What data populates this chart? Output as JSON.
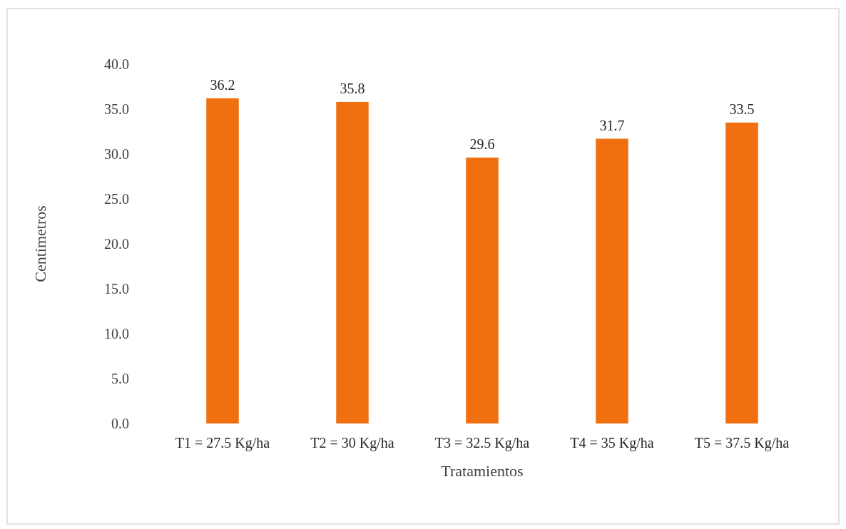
{
  "chart_data": {
    "type": "bar",
    "xlabel": "Tratamientos",
    "ylabel": "Centímetros",
    "categories": [
      "T1 = 27.5 Kg/ha",
      "T2 = 30 Kg/ha",
      "T3 = 32.5 Kg/ha",
      "T4 = 35 Kg/ha",
      "T5 = 37.5 Kg/ha"
    ],
    "values": [
      36.2,
      35.8,
      29.6,
      31.7,
      33.5
    ],
    "color": "#f07010",
    "value_labels": [
      "36.2",
      "35.8",
      "29.6",
      "31.7",
      "33.5"
    ],
    "ylim": [
      0,
      40
    ],
    "yticks": [
      {
        "value": 0,
        "label": "0.0"
      },
      {
        "value": 5,
        "label": "5.0"
      },
      {
        "value": 10,
        "label": "10.0"
      },
      {
        "value": 15,
        "label": "15.0"
      },
      {
        "value": 20,
        "label": "20.0"
      },
      {
        "value": 25,
        "label": "25.0"
      },
      {
        "value": 30,
        "label": "30.0"
      },
      {
        "value": 35,
        "label": "35.0"
      },
      {
        "value": 40,
        "label": "40.0"
      }
    ],
    "grid": false
  }
}
